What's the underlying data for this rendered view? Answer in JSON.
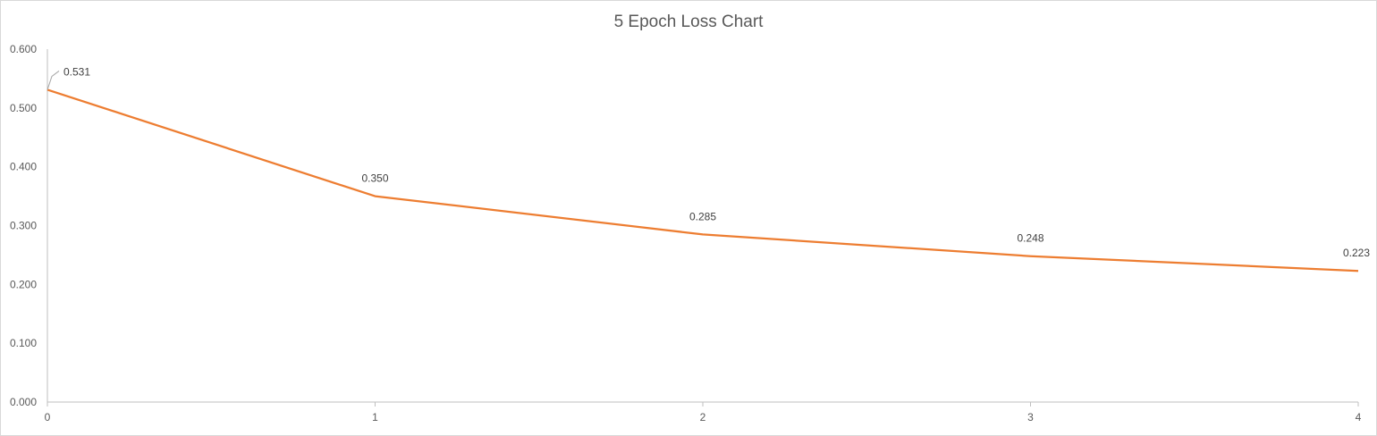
{
  "chart_data": {
    "type": "line",
    "title": "5 Epoch Loss Chart",
    "xlabel": "",
    "ylabel": "",
    "x": [
      0,
      1,
      2,
      3,
      4
    ],
    "x_tick_labels": [
      "0",
      "1",
      "2",
      "3",
      "4"
    ],
    "y_tick_labels": [
      "0.000",
      "0.100",
      "0.200",
      "0.300",
      "0.400",
      "0.500",
      "0.600"
    ],
    "ylim": [
      0,
      0.6
    ],
    "grid": false,
    "legend": "none",
    "series": [
      {
        "values": [
          0.531,
          0.35,
          0.285,
          0.248,
          0.223
        ],
        "data_labels": [
          "0.531",
          "0.350",
          "0.285",
          "0.248",
          "0.223"
        ],
        "color": "#ED7D31"
      }
    ],
    "axis_color": "#bfbfbf"
  }
}
